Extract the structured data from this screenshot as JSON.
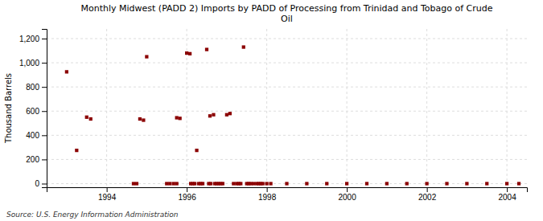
{
  "chart_data": {
    "type": "scatter",
    "title": "Monthly Midwest (PADD 2) Imports by PADD of Processing from Trinidad and Tobago of Crude\nOil",
    "y_label": "Thousand Barrels",
    "source": "Source: U.S. Energy Information Administration",
    "color": "#8b0000",
    "marker": "square",
    "grid": true,
    "xlim": [
      1992.5,
      2004.5
    ],
    "ylim": [
      -30,
      1280
    ],
    "xticks": [
      1994,
      1996,
      1998,
      2000,
      2002,
      2004
    ],
    "yticks": [
      0,
      200,
      400,
      600,
      800,
      {
        "value": 1000,
        "label": "1,000"
      },
      {
        "value": 1200,
        "label": "1,200"
      }
    ],
    "x": [
      1993.0,
      1993.25,
      1993.5,
      1993.6,
      1994.83,
      1994.92,
      1995.0,
      1995.75,
      1995.83,
      1996.0,
      1996.08,
      1996.25,
      1996.5,
      1996.58,
      1996.67,
      1997.0,
      1997.08,
      1997.42,
      1994.67,
      1994.75,
      1995.5,
      1995.58,
      1995.67,
      1995.75,
      1996.1,
      1996.15,
      1996.2,
      1996.3,
      1996.35,
      1996.4,
      1996.55,
      1996.6,
      1996.7,
      1996.75,
      1996.8,
      1996.85,
      1996.9,
      1997.17,
      1997.25,
      1997.3,
      1997.35,
      1997.5,
      1997.55,
      1997.6,
      1997.67,
      1997.75,
      1997.8,
      1997.85,
      1997.9,
      1998.0,
      1998.1,
      1998.5,
      1999.0,
      1999.5,
      2000.0,
      2000.5,
      2001.0,
      2001.5,
      2002.0,
      2002.5,
      2003.0,
      2003.5,
      2004.0,
      2004.3
    ],
    "values": [
      925,
      275,
      550,
      535,
      535,
      525,
      1050,
      545,
      540,
      1080,
      1075,
      275,
      1110,
      560,
      570,
      570,
      580,
      1130,
      0,
      0,
      0,
      0,
      0,
      0,
      0,
      0,
      0,
      0,
      0,
      0,
      0,
      0,
      0,
      0,
      0,
      0,
      0,
      0,
      0,
      0,
      0,
      0,
      0,
      0,
      0,
      0,
      0,
      0,
      0,
      0,
      0,
      0,
      0,
      0,
      0,
      0,
      0,
      0,
      0,
      0,
      0,
      0,
      0,
      0
    ]
  }
}
